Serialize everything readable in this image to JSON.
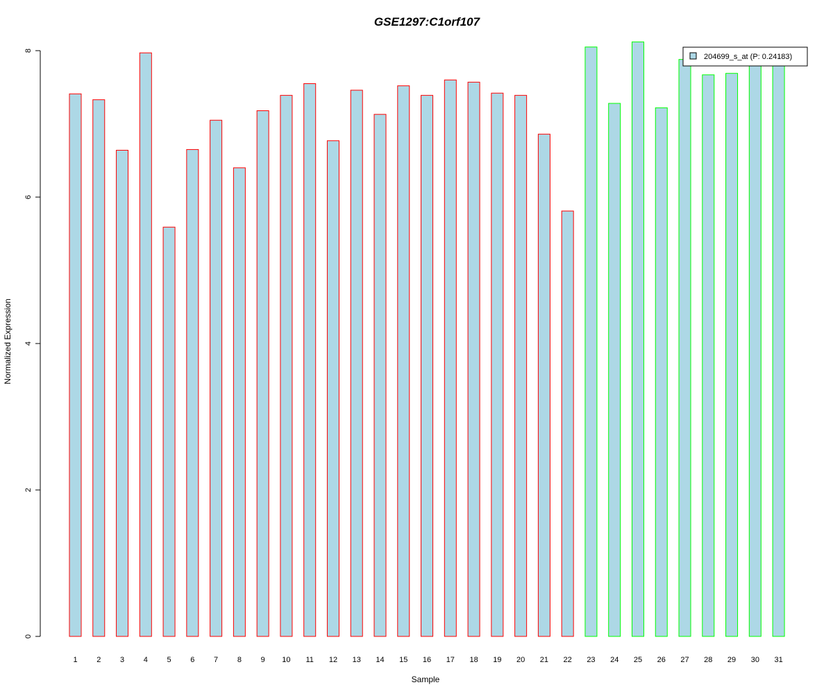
{
  "chart_data": {
    "type": "bar",
    "title": "GSE1297:C1orf107",
    "xlabel": "Sample",
    "ylabel": "Normalized Expression",
    "ylim": [
      0,
      8
    ],
    "yticks": [
      0,
      2,
      4,
      6,
      8
    ],
    "categories": [
      "1",
      "2",
      "3",
      "4",
      "5",
      "6",
      "7",
      "8",
      "9",
      "10",
      "11",
      "12",
      "13",
      "14",
      "15",
      "16",
      "17",
      "18",
      "19",
      "20",
      "21",
      "22",
      "23",
      "24",
      "25",
      "26",
      "27",
      "28",
      "29",
      "30",
      "31"
    ],
    "values": [
      7.41,
      7.33,
      6.64,
      7.97,
      5.59,
      6.65,
      7.05,
      6.4,
      7.18,
      7.39,
      7.55,
      6.77,
      7.46,
      7.13,
      7.52,
      7.39,
      7.6,
      7.57,
      7.42,
      7.39,
      6.86,
      5.81,
      8.05,
      7.28,
      8.12,
      7.22,
      7.88,
      7.67,
      7.69,
      7.8,
      7.8
    ],
    "groups": [
      "red",
      "red",
      "red",
      "red",
      "red",
      "red",
      "red",
      "red",
      "red",
      "red",
      "red",
      "red",
      "red",
      "red",
      "red",
      "red",
      "red",
      "red",
      "red",
      "red",
      "red",
      "red",
      "green",
      "green",
      "green",
      "green",
      "green",
      "green",
      "green",
      "green",
      "green"
    ],
    "legend": {
      "label": "204699_s_at (P: 0.24183)",
      "position": "top-right"
    },
    "grid": false,
    "colors": {
      "fill": "#add8e6",
      "border_red": "#ff0000",
      "border_green": "#00ff00",
      "title": "#0000cd",
      "axis": "#000000"
    }
  }
}
